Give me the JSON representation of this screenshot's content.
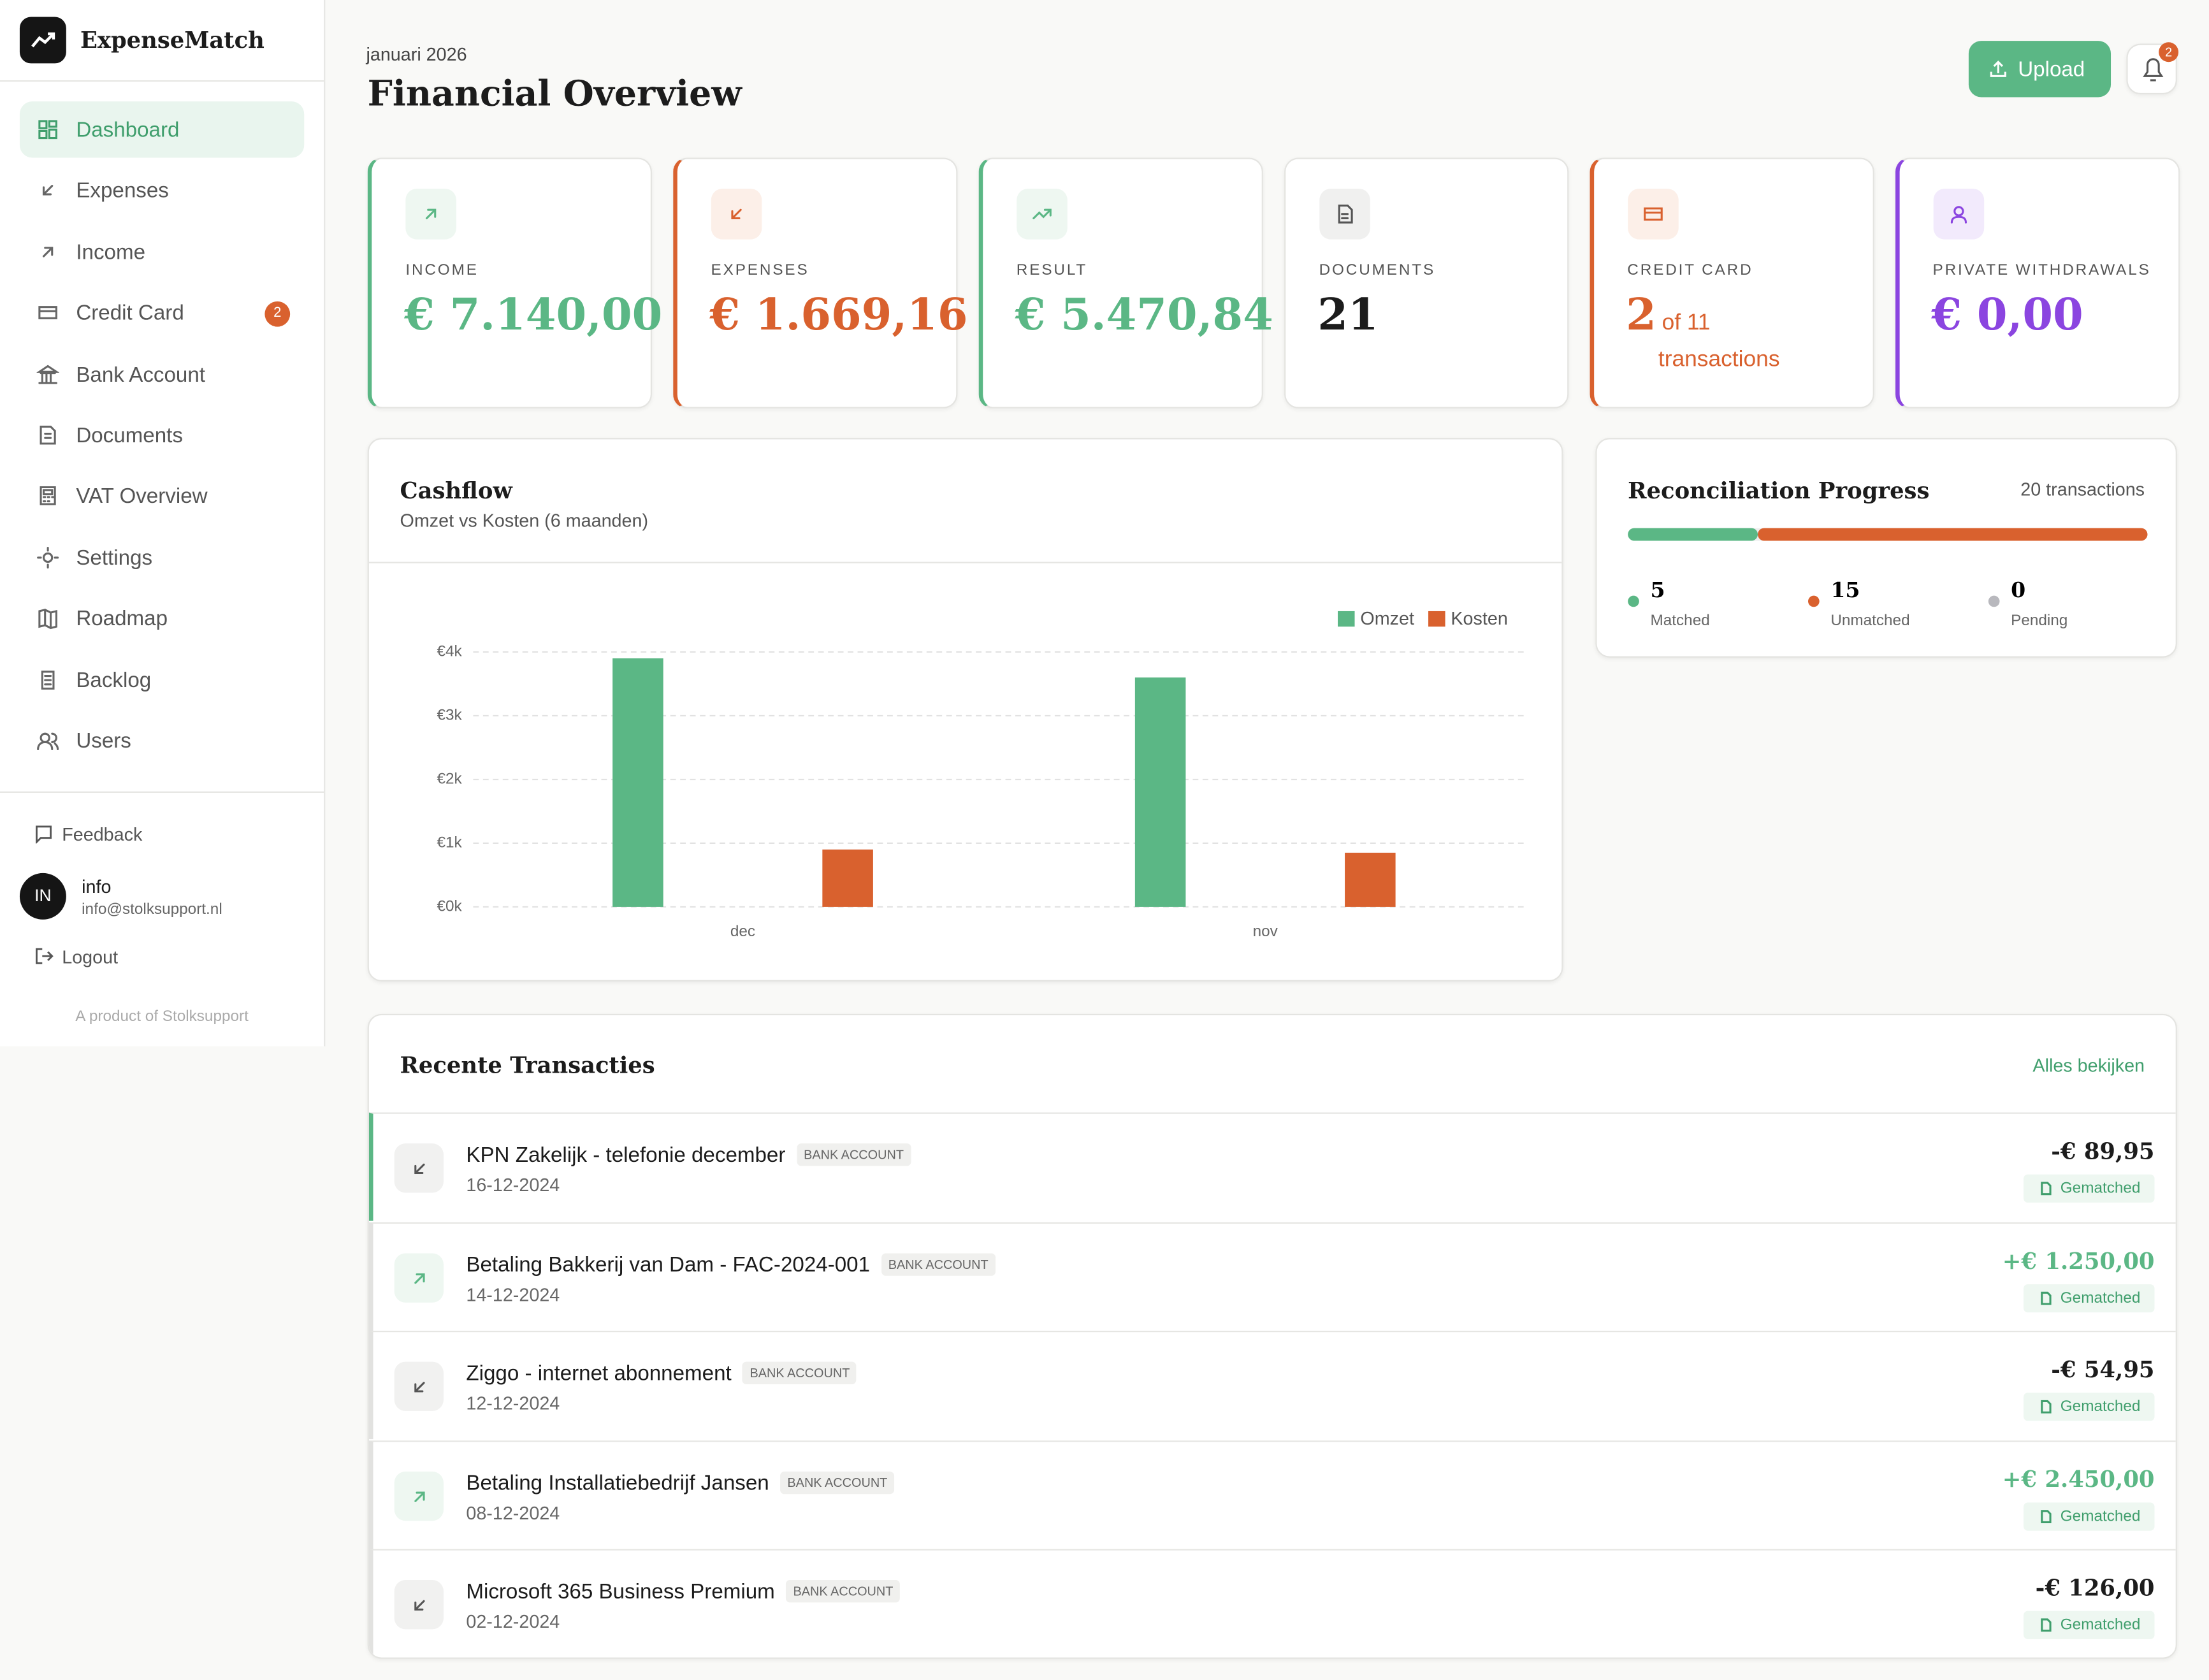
{
  "sidebar": {
    "brand": "ExpenseMatch",
    "nav": [
      "Dashboard",
      "Expenses",
      "Income",
      "Credit Card",
      "Bank Account",
      "Documents",
      "VAT Overview",
      "Settings",
      "Roadmap",
      "Backlog",
      "Users"
    ],
    "credit_card_badge": "2",
    "feedback": "Feedback",
    "user": {
      "initials": "IN",
      "name": "info",
      "email": "info@stolksupport.nl"
    },
    "logout": "Logout",
    "footer": "A product of Stolksupport"
  },
  "header": {
    "date": "januari 2026",
    "title": "Financial Overview",
    "upload": "Upload",
    "notifications": "2"
  },
  "stats": [
    {
      "label": "INCOME",
      "value": "€ 7.140,00"
    },
    {
      "label": "EXPENSES",
      "value": "€ 1.669,16"
    },
    {
      "label": "RESULT",
      "value": "€ 5.470,84"
    },
    {
      "label": "DOCUMENTS",
      "value": "21"
    },
    {
      "label": "CREDIT CARD",
      "value": "2",
      "detail": "of 11",
      "detail2": "transactions"
    },
    {
      "label": "PRIVATE WITHDRAWALS",
      "value": "€ 0,00"
    }
  ],
  "chart_data": {
    "type": "bar",
    "title": "Cashflow",
    "subtitle": "Omzet vs Kosten (6 maanden)",
    "categories": [
      "dec",
      "nov"
    ],
    "series": [
      {
        "name": "Omzet",
        "color": "#5bb785",
        "values": [
          3900,
          3600
        ]
      },
      {
        "name": "Kosten",
        "color": "#d9612e",
        "values": [
          900,
          850
        ]
      }
    ],
    "ylim": [
      0,
      4000
    ],
    "yticks": [
      {
        "value": 0,
        "label": "€0k"
      },
      {
        "value": 1000,
        "label": "€1k"
      },
      {
        "value": 2000,
        "label": "€2k"
      },
      {
        "value": 3000,
        "label": "€3k"
      },
      {
        "value": 4000,
        "label": "€4k"
      }
    ],
    "grid": true
  },
  "reconciliation": {
    "title": "Reconciliation Progress",
    "count": "20 transactions",
    "items": [
      {
        "value": 5,
        "label": "Matched",
        "color": "#5bb785"
      },
      {
        "value": 15,
        "label": "Unmatched",
        "color": "#d9612e"
      },
      {
        "value": 0,
        "label": "Pending",
        "color": "#b8b8bd"
      }
    ]
  },
  "transactions": {
    "title": "Recente Transacties",
    "link": "Alles bekijken",
    "rows": [
      {
        "name": "KPN Zakelijk - telefonie december",
        "tag": "BANK ACCOUNT",
        "date": "16-12-2024",
        "amount": "-€ 89,95",
        "status": "Gematched"
      },
      {
        "name": "Betaling Bakkerij van Dam - FAC-2024-001",
        "tag": "BANK ACCOUNT",
        "date": "14-12-2024",
        "amount": "+€ 1.250,00",
        "status": "Gematched"
      },
      {
        "name": "Ziggo - internet abonnement",
        "tag": "BANK ACCOUNT",
        "date": "12-12-2024",
        "amount": "-€ 54,95",
        "status": "Gematched"
      },
      {
        "name": "Betaling Installatiebedrijf Jansen",
        "tag": "BANK ACCOUNT",
        "date": "08-12-2024",
        "amount": "+€ 2.450,00",
        "status": "Gematched"
      },
      {
        "name": "Microsoft 365 Business Premium",
        "tag": "BANK ACCOUNT",
        "date": "02-12-2024",
        "amount": "-€ 126,00",
        "status": "Gematched"
      }
    ]
  }
}
